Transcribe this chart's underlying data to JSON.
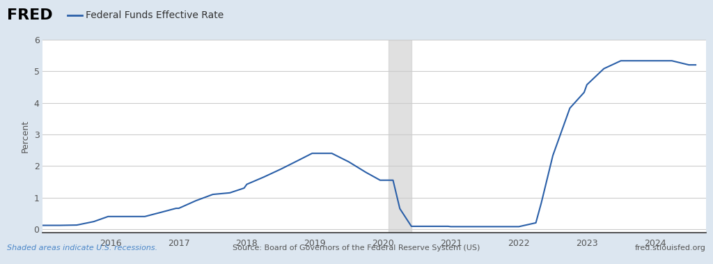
{
  "title": "Federal Funds Effective Rate",
  "ylabel": "Percent",
  "bg_color": "#dce6f0",
  "plot_bg_color": "#ffffff",
  "line_color": "#2a5fa8",
  "recession_color": "#cccccc",
  "recession_alpha": 0.6,
  "recession_start": 2020.08,
  "recession_end": 2020.42,
  "ylim": [
    -0.1,
    6.0
  ],
  "yticks": [
    0,
    1,
    2,
    3,
    4,
    5,
    6
  ],
  "footer_left": "Shaded areas indicate U.S. recessions.",
  "footer_center": "Source: Board of Governors of the Federal Reserve System (US)",
  "footer_right": "fred.stlouisfed.org",
  "fred_text_color": "#333333",
  "footer_link_color": "#4a86c8",
  "dates": [
    2015.0,
    2015.25,
    2015.5,
    2015.75,
    2015.96,
    2016.0,
    2016.25,
    2016.5,
    2016.75,
    2016.96,
    2017.0,
    2017.25,
    2017.5,
    2017.75,
    2017.96,
    2018.0,
    2018.25,
    2018.5,
    2018.75,
    2018.96,
    2019.0,
    2019.25,
    2019.5,
    2019.75,
    2019.96,
    2020.0,
    2020.15,
    2020.25,
    2020.42,
    2020.5,
    2020.75,
    2020.96,
    2021.0,
    2021.25,
    2021.5,
    2021.75,
    2021.96,
    2022.0,
    2022.25,
    2022.33,
    2022.5,
    2022.75,
    2022.96,
    2023.0,
    2023.25,
    2023.5,
    2023.75,
    2023.96,
    2024.0,
    2024.25,
    2024.5,
    2024.6
  ],
  "values": [
    0.12,
    0.12,
    0.13,
    0.24,
    0.4,
    0.4,
    0.4,
    0.4,
    0.54,
    0.66,
    0.66,
    0.9,
    1.1,
    1.15,
    1.3,
    1.42,
    1.65,
    1.9,
    2.17,
    2.4,
    2.4,
    2.4,
    2.13,
    1.8,
    1.55,
    1.55,
    1.55,
    0.65,
    0.09,
    0.09,
    0.09,
    0.09,
    0.08,
    0.08,
    0.08,
    0.08,
    0.08,
    0.08,
    0.2,
    0.83,
    2.33,
    3.83,
    4.33,
    4.57,
    5.08,
    5.33,
    5.33,
    5.33,
    5.33,
    5.33,
    5.2,
    5.2
  ],
  "xlim": [
    2015.0,
    2024.75
  ]
}
